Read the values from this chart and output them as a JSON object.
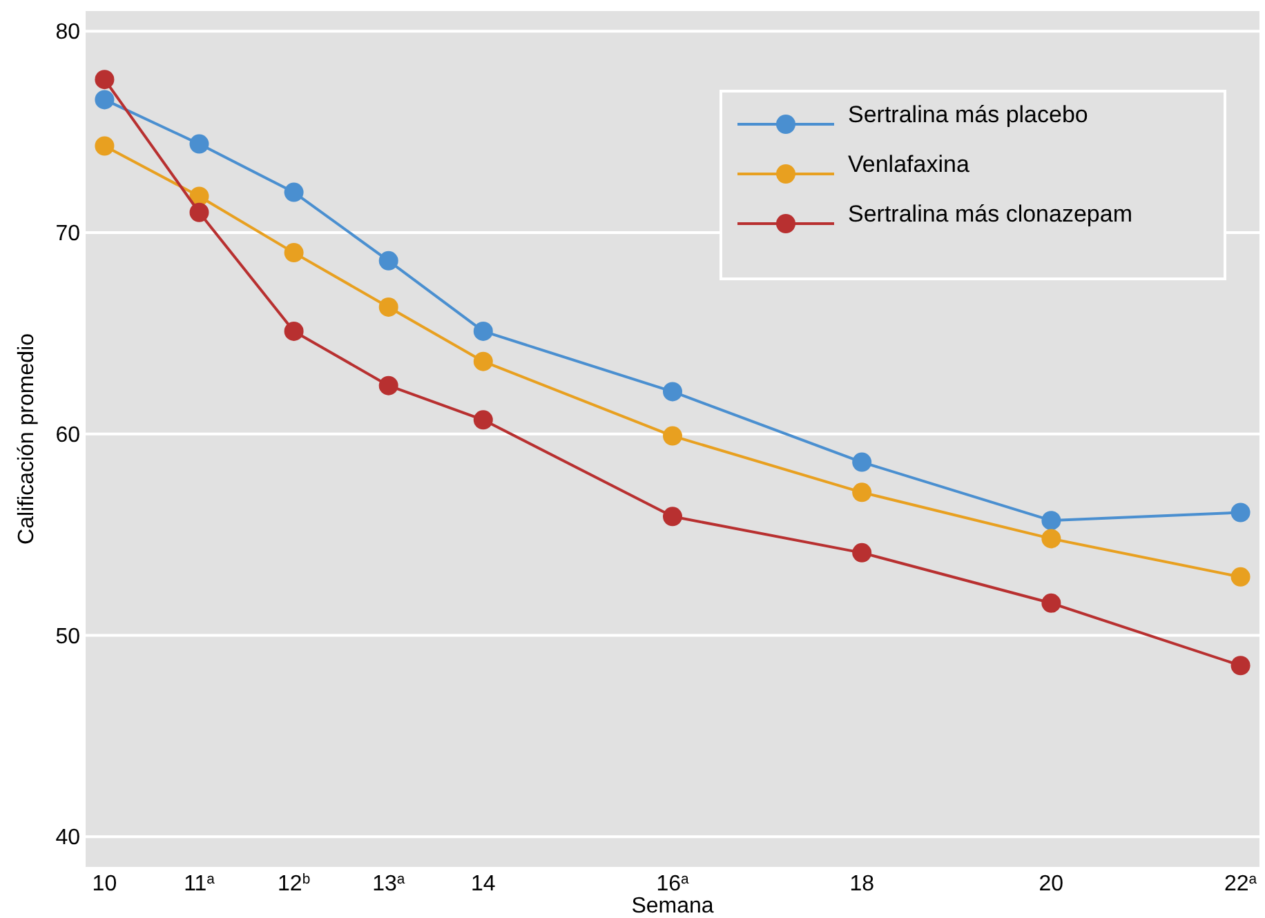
{
  "chart_data": {
    "type": "line",
    "xlabel": "Semana",
    "ylabel": "Calificación promedio",
    "x": [
      10,
      11,
      12,
      13,
      14,
      16,
      18,
      20,
      22
    ],
    "xlim": [
      9.8,
      22.2
    ],
    "xticks": [
      10,
      {
        "value": 11,
        "label": "11$^{a}$"
      },
      {
        "value": 12,
        "label": "12$^{b}$"
      },
      {
        "value": 13,
        "label": "13$^{a}$"
      },
      14,
      {
        "value": 16,
        "label": "16$^{a}$"
      },
      18,
      20,
      {
        "value": 22,
        "label": "22$^{a}$"
      }
    ],
    "ylim": [
      38.5,
      81
    ],
    "yticks": [
      40,
      50,
      60,
      70,
      80
    ],
    "grid": "y",
    "legend": "top right",
    "marker": "circle",
    "line_style": "solid",
    "series": [
      {
        "name": "Sertralina más placebo",
        "color": "#4a8fd0",
        "values": [
          76.6,
          74.4,
          72.0,
          68.6,
          65.1,
          62.1,
          58.6,
          55.7,
          56.1
        ]
      },
      {
        "name": "Venlafaxina",
        "color": "#e8a020",
        "values": [
          74.3,
          71.8,
          69.0,
          66.3,
          63.6,
          59.9,
          57.1,
          54.8,
          52.9
        ]
      },
      {
        "name": "Sertralina más clonazepam",
        "color": "#b83030",
        "values": [
          77.6,
          71.0,
          65.1,
          62.4,
          60.7,
          55.9,
          54.1,
          51.6,
          48.5
        ]
      }
    ]
  }
}
